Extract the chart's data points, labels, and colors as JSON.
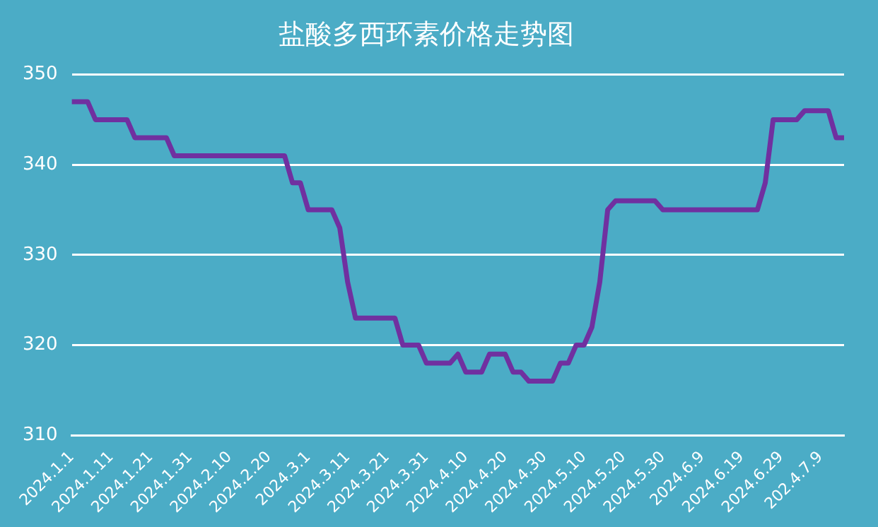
{
  "chart_data": {
    "type": "line",
    "title": "盐酸多西环素价格走势图",
    "categories": [
      "2024.1.1",
      null,
      null,
      null,
      null,
      "2024.1.11",
      null,
      null,
      null,
      null,
      "2024.1.21",
      null,
      null,
      null,
      null,
      "2024.1.31",
      null,
      null,
      null,
      null,
      "2024.2.10",
      null,
      null,
      null,
      null,
      "2024.2.20",
      null,
      null,
      null,
      null,
      "2024.3.1",
      null,
      null,
      null,
      null,
      "2024.3.11",
      null,
      null,
      null,
      null,
      "2024.3.21",
      null,
      null,
      null,
      null,
      "2024.3.31",
      null,
      null,
      null,
      null,
      "2024.4.10",
      null,
      null,
      null,
      null,
      "2024.4.20",
      null,
      null,
      null,
      null,
      "2024.4.30",
      null,
      null,
      null,
      null,
      "2024.5.10",
      null,
      null,
      null,
      null,
      "2024.5.20",
      null,
      null,
      null,
      null,
      "2024.5.30",
      null,
      null,
      null,
      null,
      "2024.6.9",
      null,
      null,
      null,
      null,
      "2024.6.19",
      null,
      null,
      null,
      null,
      "2024.6.29",
      null,
      null,
      null,
      null,
      "202.4.7.9",
      null,
      null,
      null
    ],
    "values": [
      347,
      347,
      347,
      345,
      345,
      345,
      345,
      345,
      343,
      343,
      343,
      343,
      343,
      341,
      341,
      341,
      341,
      341,
      341,
      341,
      341,
      341,
      341,
      341,
      341,
      341,
      341,
      341,
      338,
      338,
      335,
      335,
      335,
      335,
      333,
      327,
      323,
      323,
      323,
      323,
      323,
      323,
      320,
      320,
      320,
      318,
      318,
      318,
      318,
      319,
      317,
      317,
      317,
      319,
      319,
      319,
      317,
      317,
      316,
      316,
      316,
      316,
      318,
      318,
      320,
      320,
      322,
      327,
      335,
      336,
      336,
      336,
      336,
      336,
      336,
      335,
      335,
      335,
      335,
      335,
      335,
      335,
      335,
      335,
      335,
      335,
      335,
      335,
      338,
      345,
      345,
      345,
      345,
      346,
      346,
      346,
      346,
      343,
      343
    ],
    "color": "#7030a0",
    "ylim": [
      310,
      350
    ],
    "yticks": [
      310,
      320,
      330,
      340,
      350
    ],
    "grid": "y",
    "marker": "none",
    "legend": false
  }
}
